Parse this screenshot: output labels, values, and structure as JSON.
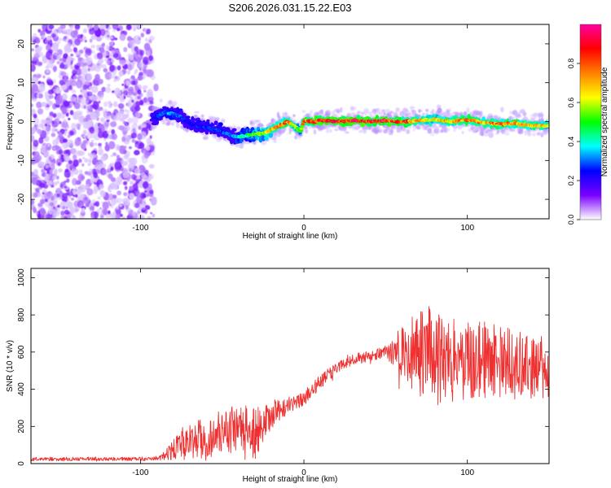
{
  "figure": {
    "title": "S206.2026.031.15.22.E03"
  },
  "chart_data": [
    {
      "type": "heatmap",
      "title": "S206.2026.031.15.22.E03",
      "xlabel": "Height of straight line (km)",
      "ylabel": "Frequency (Hz)",
      "xlim": [
        -167,
        150
      ],
      "ylim": [
        -25,
        25
      ],
      "x_ticks": [
        -100,
        0,
        100
      ],
      "y_ticks": [
        20,
        10,
        0,
        -10,
        -20
      ],
      "colorbar": {
        "label": "Normalized spectral amplitude",
        "range": [
          0,
          1
        ],
        "ticks": [
          "0.0",
          "0.2",
          "0.4",
          "0.6",
          "0.8"
        ],
        "colormap": [
          "#ffffff",
          "#7a00ff",
          "#0000ff",
          "#00ffff",
          "#00ff00",
          "#ffff00",
          "#ff8000",
          "#ff0000",
          "#ff00a0"
        ]
      },
      "noise_region": {
        "x_range": [
          -167,
          -93
        ],
        "frequency_range": [
          -25,
          25
        ],
        "amplitude": 0.1
      },
      "signal_ridge": {
        "x": [
          -93,
          -85,
          -80,
          -75,
          -70,
          -60,
          -50,
          -45,
          -40,
          -35,
          -30,
          -25,
          -20,
          -15,
          -10,
          -5,
          -2,
          0,
          5,
          10,
          20,
          30,
          40,
          50,
          60,
          70,
          80,
          90,
          100,
          110,
          120,
          130,
          140,
          150
        ],
        "frequency": [
          0.5,
          2.5,
          2.0,
          1.0,
          -0.5,
          -1.5,
          -2.5,
          -3.5,
          -4.0,
          -3.5,
          -3.2,
          -3.0,
          -2.0,
          -1.0,
          0.0,
          -1.5,
          -2.5,
          0.2,
          0.0,
          0.3,
          0.0,
          0.3,
          0.0,
          0.2,
          0.0,
          0.2,
          0.5,
          0.0,
          0.5,
          -0.3,
          -0.6,
          -0.5,
          -1.0,
          -1.2
        ],
        "amplitude": [
          0.2,
          0.35,
          0.35,
          0.3,
          0.25,
          0.3,
          0.3,
          0.35,
          0.4,
          0.5,
          0.55,
          0.65,
          0.75,
          0.8,
          0.85,
          0.6,
          0.55,
          0.85,
          0.9,
          0.95,
          0.95,
          0.95,
          0.95,
          0.95,
          0.9,
          0.75,
          0.7,
          0.75,
          0.85,
          0.8,
          0.85,
          0.8,
          0.75,
          0.7
        ]
      }
    },
    {
      "type": "line",
      "xlabel": "Height of straight line (km)",
      "ylabel": "SNR (10 * v/v)",
      "xlim": [
        -167,
        150
      ],
      "ylim": [
        0,
        1050
      ],
      "x_ticks": [
        -100,
        0,
        100
      ],
      "y_ticks": [
        0,
        200,
        400,
        600,
        800,
        1000
      ],
      "series": [
        {
          "name": "SNR",
          "color": "#ee3030",
          "x": [
            -167,
            -150,
            -130,
            -110,
            -95,
            -88,
            -82,
            -78,
            -70,
            -60,
            -50,
            -45,
            -40,
            -35,
            -30,
            -25,
            -20,
            -15,
            -10,
            -5,
            0,
            5,
            10,
            15,
            20,
            25,
            30,
            35,
            40,
            45,
            50,
            55,
            60,
            65,
            70,
            75,
            80,
            85,
            90,
            95,
            100,
            105,
            110,
            115,
            120,
            125,
            130,
            135,
            140,
            145,
            150
          ],
          "mean": [
            25,
            25,
            25,
            25,
            25,
            30,
            60,
            90,
            120,
            140,
            170,
            180,
            160,
            170,
            160,
            200,
            260,
            290,
            310,
            320,
            350,
            400,
            440,
            480,
            510,
            540,
            560,
            570,
            580,
            590,
            600,
            600,
            610,
            600,
            600,
            610,
            580,
            560,
            580,
            570,
            560,
            560,
            560,
            560,
            550,
            550,
            530,
            530,
            530,
            520,
            520
          ],
          "spread": [
            10,
            10,
            10,
            10,
            10,
            12,
            40,
            70,
            100,
            110,
            120,
            130,
            140,
            150,
            140,
            110,
            80,
            60,
            50,
            40,
            40,
            40,
            40,
            35,
            30,
            30,
            30,
            30,
            30,
            30,
            35,
            80,
            150,
            200,
            240,
            260,
            260,
            260,
            250,
            240,
            230,
            220,
            210,
            200,
            200,
            190,
            190,
            180,
            180,
            170,
            160
          ]
        }
      ]
    }
  ]
}
